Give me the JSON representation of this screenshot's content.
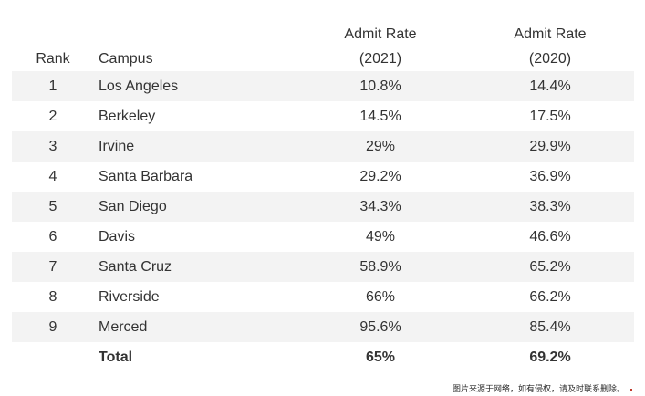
{
  "table": {
    "headers": {
      "rank": "Rank",
      "campus": "Campus",
      "rate_2021_line1": "Admit Rate",
      "rate_2021_line2": "(2021)",
      "rate_2020_line1": "Admit Rate",
      "rate_2020_line2": "(2020)"
    },
    "rows": [
      {
        "rank": "1",
        "campus": "Los Angeles",
        "rate_2021": "10.8%",
        "rate_2020": "14.4%"
      },
      {
        "rank": "2",
        "campus": "Berkeley",
        "rate_2021": "14.5%",
        "rate_2020": "17.5%"
      },
      {
        "rank": "3",
        "campus": "Irvine",
        "rate_2021": "29%",
        "rate_2020": "29.9%"
      },
      {
        "rank": "4",
        "campus": "Santa Barbara",
        "rate_2021": "29.2%",
        "rate_2020": "36.9%"
      },
      {
        "rank": "5",
        "campus": "San Diego",
        "rate_2021": "34.3%",
        "rate_2020": "38.3%"
      },
      {
        "rank": "6",
        "campus": "Davis",
        "rate_2021": "49%",
        "rate_2020": "46.6%"
      },
      {
        "rank": "7",
        "campus": "Santa Cruz",
        "rate_2021": "58.9%",
        "rate_2020": "65.2%"
      },
      {
        "rank": "8",
        "campus": "Riverside",
        "rate_2021": "66%",
        "rate_2020": "66.2%"
      },
      {
        "rank": "9",
        "campus": "Merced",
        "rate_2021": "95.6%",
        "rate_2020": "85.4%"
      }
    ],
    "total": {
      "label": "Total",
      "rate_2021": "65%",
      "rate_2020": "69.2%"
    }
  },
  "watermark": "图片来源于网络，如有侵权，请及时联系删除。",
  "colors": {
    "row_shade": "#f3f3f3",
    "text": "#333333",
    "background": "#ffffff"
  }
}
